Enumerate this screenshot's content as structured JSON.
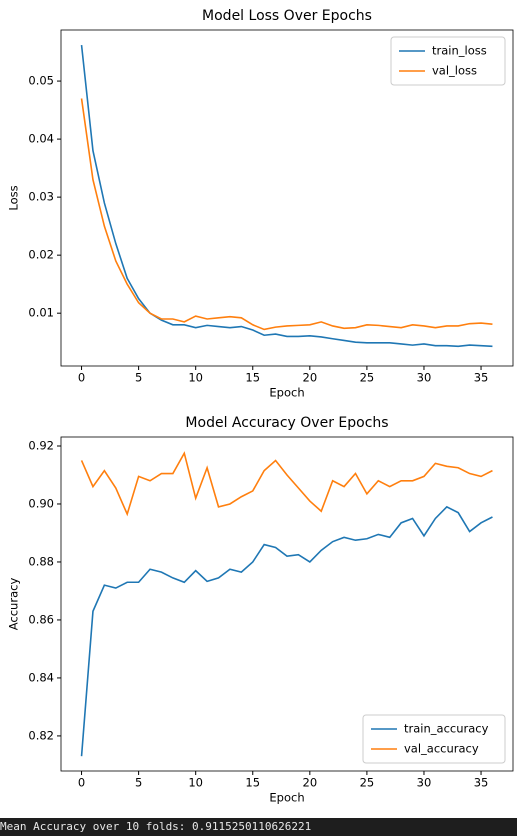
{
  "chart_data": [
    {
      "type": "line",
      "title": "Model Loss Over Epochs",
      "x_label": "Epoch",
      "y_label": "Loss",
      "x": [
        0,
        1,
        2,
        3,
        4,
        5,
        6,
        7,
        8,
        9,
        10,
        11,
        12,
        13,
        14,
        15,
        16,
        17,
        18,
        19,
        20,
        21,
        22,
        23,
        24,
        25,
        26,
        27,
        28,
        29,
        30,
        31,
        32,
        33,
        34,
        35,
        36
      ],
      "series": [
        {
          "name": "train_loss",
          "color": "#1f77b4",
          "values": [
            0.0562,
            0.038,
            0.029,
            0.022,
            0.016,
            0.0125,
            0.01,
            0.0088,
            0.008,
            0.008,
            0.0075,
            0.0079,
            0.0077,
            0.0075,
            0.0077,
            0.0071,
            0.0062,
            0.0064,
            0.006,
            0.006,
            0.0061,
            0.0059,
            0.0056,
            0.0053,
            0.005,
            0.0049,
            0.0049,
            0.0049,
            0.0047,
            0.0045,
            0.0047,
            0.0044,
            0.0044,
            0.0043,
            0.0045,
            0.0044,
            0.0043
          ]
        },
        {
          "name": "val_loss",
          "color": "#ff7f0e",
          "values": [
            0.047,
            0.033,
            0.025,
            0.019,
            0.015,
            0.0118,
            0.01,
            0.009,
            0.009,
            0.0085,
            0.0095,
            0.009,
            0.0092,
            0.0094,
            0.0092,
            0.008,
            0.0072,
            0.0076,
            0.0078,
            0.0079,
            0.008,
            0.0085,
            0.0078,
            0.0074,
            0.0075,
            0.008,
            0.0079,
            0.0077,
            0.0075,
            0.008,
            0.0078,
            0.0075,
            0.0078,
            0.0078,
            0.0082,
            0.0083,
            0.0081
          ]
        }
      ],
      "xlim": [
        -1.8,
        37.8
      ],
      "xticks": [
        0,
        5,
        10,
        15,
        20,
        25,
        30,
        35
      ],
      "ylim": [
        0.0009,
        0.0588
      ],
      "yticks": [
        0.01,
        0.02,
        0.03,
        0.04,
        0.05
      ],
      "legend": "upper right",
      "grid": false
    },
    {
      "type": "line",
      "title": "Model Accuracy Over Epochs",
      "x_label": "Epoch",
      "y_label": "Accuracy",
      "x": [
        0,
        1,
        2,
        3,
        4,
        5,
        6,
        7,
        8,
        9,
        10,
        11,
        12,
        13,
        14,
        15,
        16,
        17,
        18,
        19,
        20,
        21,
        22,
        23,
        24,
        25,
        26,
        27,
        28,
        29,
        30,
        31,
        32,
        33,
        34,
        35,
        36
      ],
      "series": [
        {
          "name": "train_accuracy",
          "color": "#1f77b4",
          "values": [
            0.813,
            0.863,
            0.872,
            0.871,
            0.873,
            0.873,
            0.8775,
            0.8765,
            0.8745,
            0.873,
            0.877,
            0.8733,
            0.8745,
            0.8775,
            0.8765,
            0.88,
            0.886,
            0.885,
            0.882,
            0.8825,
            0.88,
            0.884,
            0.887,
            0.8885,
            0.8875,
            0.888,
            0.8895,
            0.8885,
            0.8935,
            0.895,
            0.889,
            0.895,
            0.899,
            0.897,
            0.8905,
            0.8935,
            0.8955
          ]
        },
        {
          "name": "val_accuracy",
          "color": "#ff7f0e",
          "values": [
            0.915,
            0.906,
            0.9115,
            0.9055,
            0.8965,
            0.9095,
            0.908,
            0.9105,
            0.9105,
            0.9175,
            0.902,
            0.9125,
            0.899,
            0.9,
            0.9025,
            0.9045,
            0.9115,
            0.915,
            0.91,
            0.9055,
            0.901,
            0.8975,
            0.908,
            0.906,
            0.9105,
            0.9035,
            0.908,
            0.906,
            0.908,
            0.908,
            0.9095,
            0.914,
            0.913,
            0.9125,
            0.9105,
            0.9095,
            0.9115
          ]
        }
      ],
      "xlim": [
        -1.8,
        37.8
      ],
      "xticks": [
        0,
        5,
        10,
        15,
        20,
        25,
        30,
        35
      ],
      "ylim": [
        0.8079,
        0.9231
      ],
      "yticks": [
        0.82,
        0.84,
        0.86,
        0.88,
        {
          "value": 0.9,
          "label": "0.90"
        },
        0.92
      ],
      "legend": "lower right",
      "grid": false
    }
  ],
  "console": {
    "text": "Mean Accuracy over 10 folds: 0.9115250110626221"
  }
}
